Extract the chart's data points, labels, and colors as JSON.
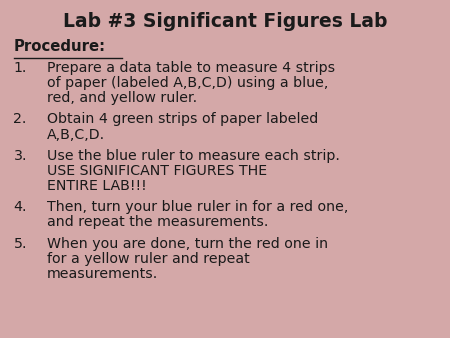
{
  "title": "Lab #3 Significant Figures Lab",
  "background_color": "#d4a8a8",
  "text_color": "#1a1a1a",
  "title_fontsize": 13.5,
  "body_fontsize": 10.2,
  "section_label": "Procedure",
  "items": [
    "Prepare a data table to measure 4 strips\nof paper (labeled A,B,C,D) using a blue,\nred, and yellow ruler.",
    "Obtain 4 green strips of paper labeled\nA,B,C,D.",
    "Use the blue ruler to measure each strip.\nUSE SIGNIFICANT FIGURES THE\nENTIRE LAB!!!",
    "Then, turn your blue ruler in for a red one,\nand repeat the measurements.",
    "When you are done, turn the red one in\nfor a yellow ruler and repeat\nmeasurements."
  ]
}
